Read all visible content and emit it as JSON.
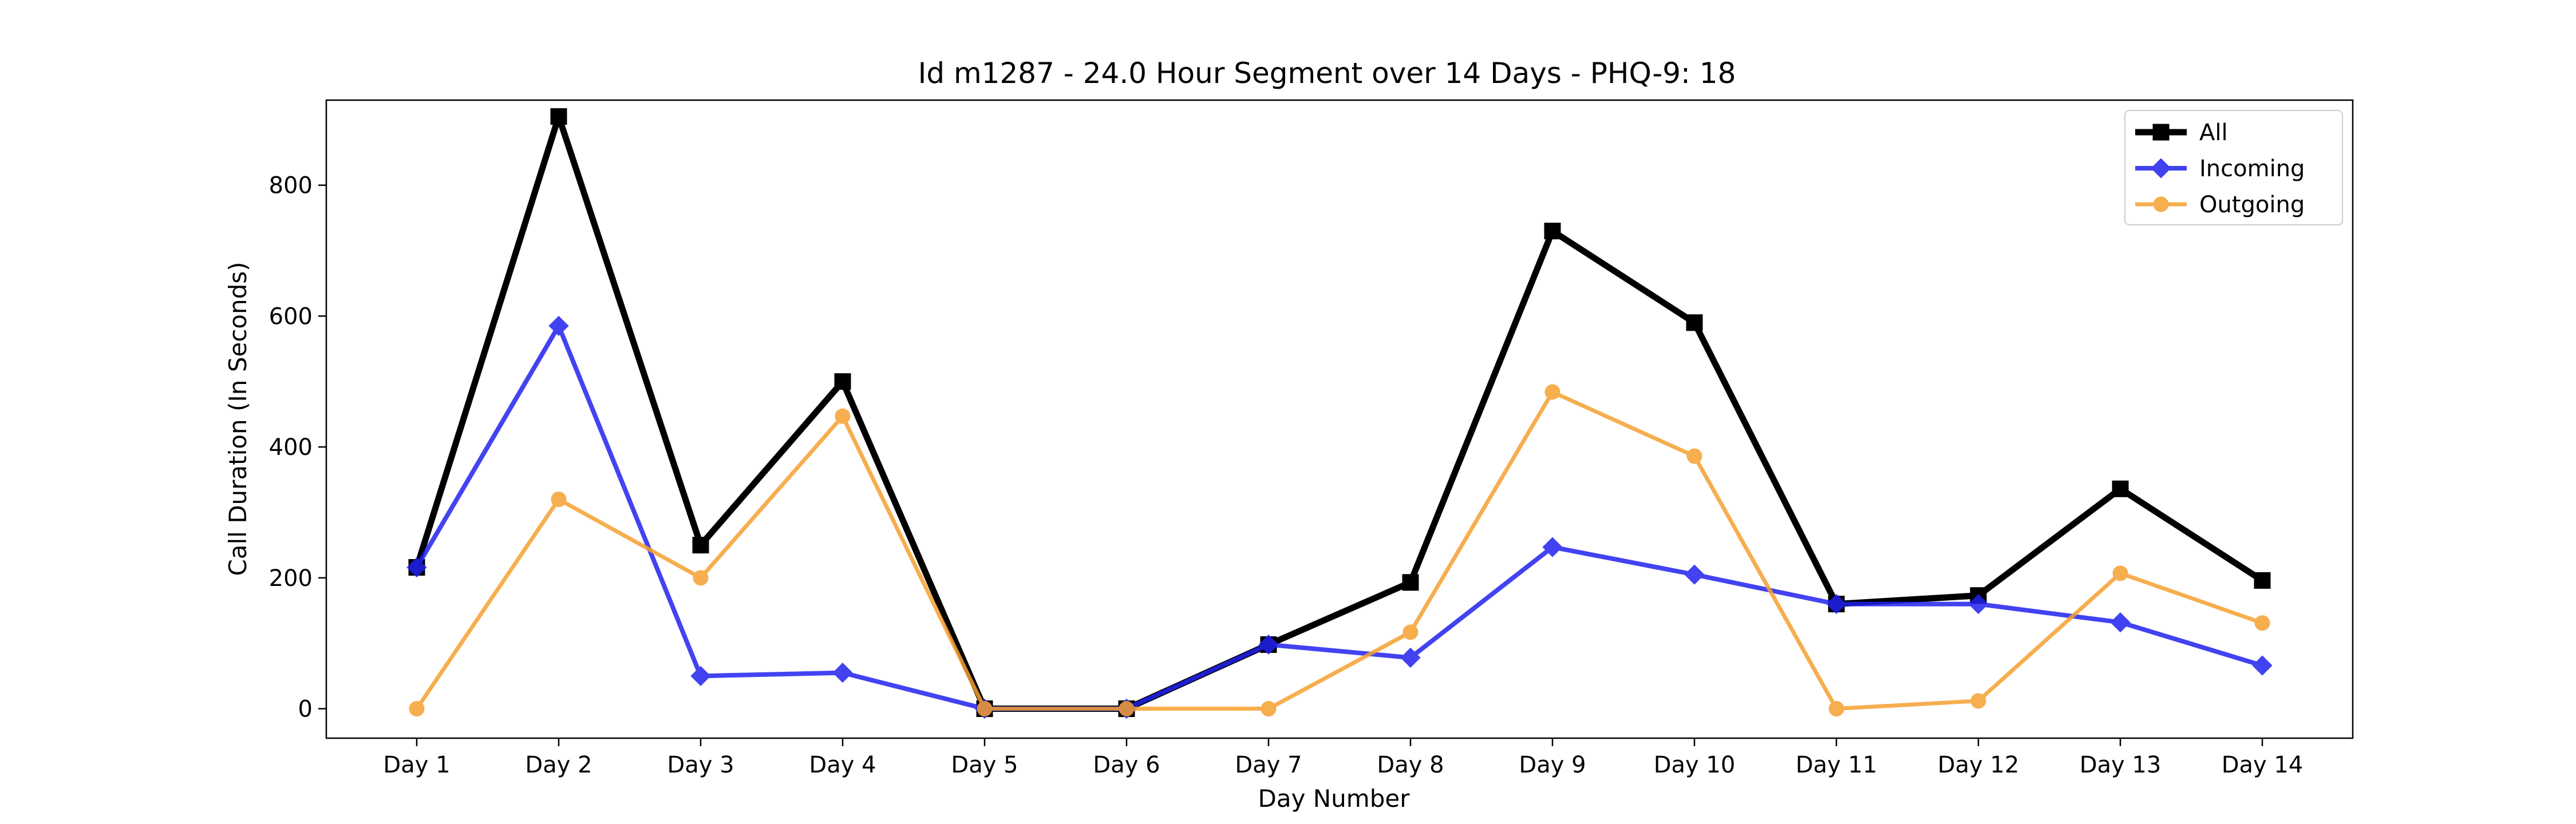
{
  "chart_data": {
    "type": "line",
    "title": "Id m1287 - 24.0 Hour Segment over 14 Days - PHQ-9: 18",
    "xlabel": "Day Number",
    "ylabel": "Call Duration (In Seconds)",
    "categories": [
      "Day 1",
      "Day 2",
      "Day 3",
      "Day 4",
      "Day 5",
      "Day 6",
      "Day 7",
      "Day 8",
      "Day 9",
      "Day 10",
      "Day 11",
      "Day 12",
      "Day 13",
      "Day 14"
    ],
    "ylim": [
      -45,
      930
    ],
    "yticks": [
      0,
      200,
      400,
      600,
      800
    ],
    "grid": false,
    "legend_position": "top-right",
    "series": [
      {
        "name": "All",
        "color": "#000000",
        "marker": "square",
        "values": [
          216,
          905,
          250,
          500,
          0,
          0,
          98,
          193,
          730,
          590,
          160,
          173,
          336,
          196
        ]
      },
      {
        "name": "Incoming",
        "color": "#2222ee",
        "marker": "diamond",
        "values": [
          216,
          585,
          50,
          55,
          0,
          0,
          98,
          78,
          247,
          205,
          160,
          160,
          132,
          66
        ]
      },
      {
        "name": "Outgoing",
        "color": "#f5a030",
        "marker": "circle",
        "values": [
          0,
          320,
          200,
          447,
          0,
          0,
          0,
          117,
          484,
          386,
          0,
          12,
          207,
          131
        ]
      }
    ]
  }
}
